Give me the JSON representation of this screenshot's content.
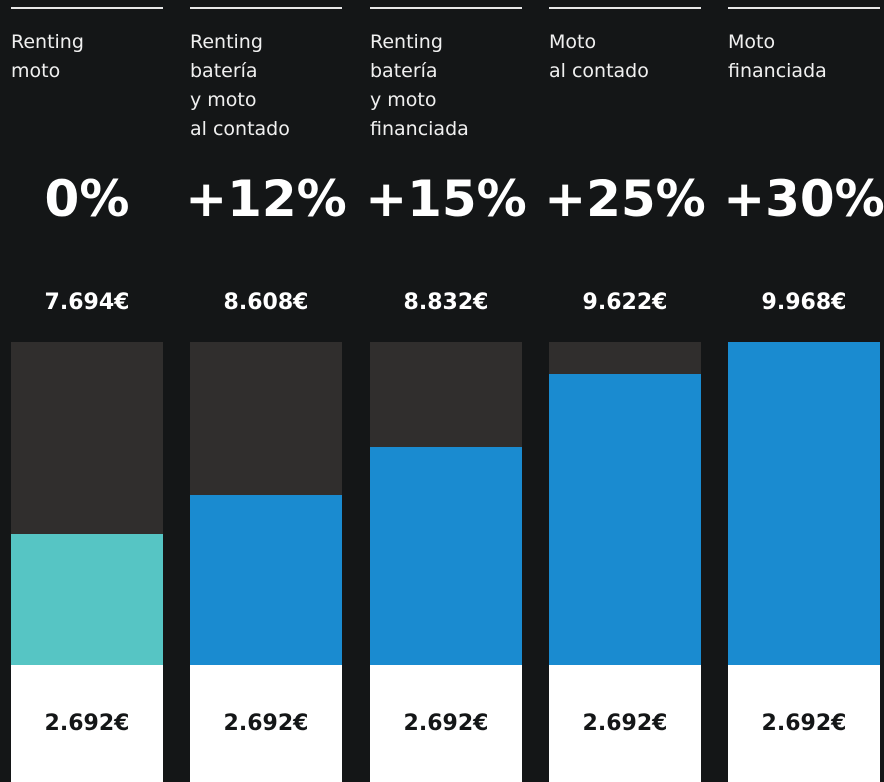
{
  "columns": [
    {
      "label": [
        "Renting",
        "moto"
      ],
      "change": "0%",
      "total": "7.694€",
      "base": "2.692€"
    },
    {
      "label": [
        "Renting",
        "batería",
        "y moto",
        "al contado"
      ],
      "change": "+12%",
      "total": "8.608€",
      "base": "2.692€"
    },
    {
      "label": [
        "Renting",
        "batería",
        "y moto",
        "financiada"
      ],
      "change": "+15%",
      "total": "8.832€",
      "base": "2.692€"
    },
    {
      "label": [
        "Moto",
        "al contado"
      ],
      "change": "+25%",
      "total": "9.622€",
      "base": "2.692€"
    },
    {
      "label": [
        "Moto",
        "financiada"
      ],
      "change": "+30%",
      "total": "9.968€",
      "base": "2.692€"
    }
  ]
}
